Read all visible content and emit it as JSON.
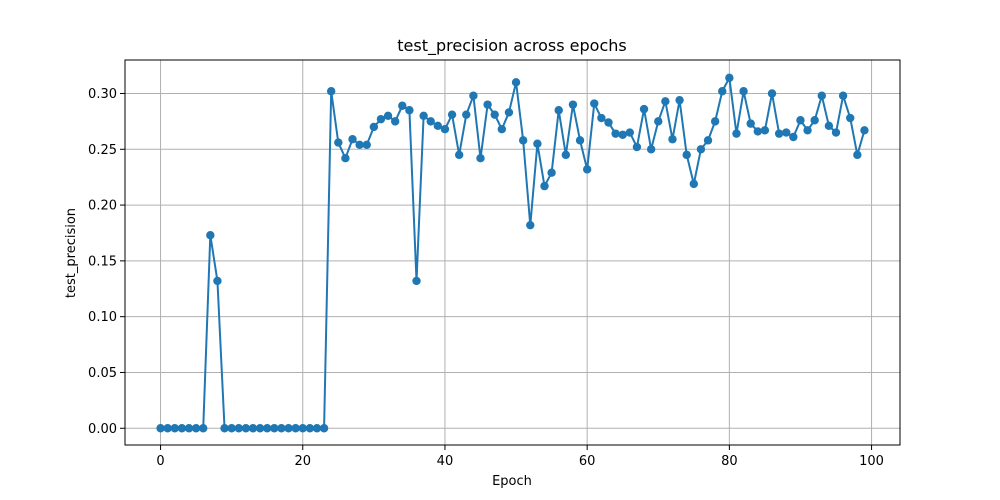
{
  "chart_data": {
    "type": "line",
    "title": "test_precision across epochs",
    "xlabel": "Epoch",
    "ylabel": "test_precision",
    "xlim": [
      -5,
      104
    ],
    "ylim": [
      -0.015,
      0.33
    ],
    "xticks": [
      0,
      20,
      40,
      60,
      80,
      100
    ],
    "xtick_labels": [
      "0",
      "20",
      "40",
      "60",
      "80",
      "100"
    ],
    "yticks": [
      0.0,
      0.05,
      0.1,
      0.15,
      0.2,
      0.25,
      0.3
    ],
    "ytick_labels": [
      "0.00",
      "0.05",
      "0.10",
      "0.15",
      "0.20",
      "0.25",
      "0.30"
    ],
    "grid": true,
    "color": "#1f77b4",
    "marker": "circle",
    "x": [
      0,
      1,
      2,
      3,
      4,
      5,
      6,
      7,
      8,
      9,
      10,
      11,
      12,
      13,
      14,
      15,
      16,
      17,
      18,
      19,
      20,
      21,
      22,
      23,
      24,
      25,
      26,
      27,
      28,
      29,
      30,
      31,
      32,
      33,
      34,
      35,
      36,
      37,
      38,
      39,
      40,
      41,
      42,
      43,
      44,
      45,
      46,
      47,
      48,
      49,
      50,
      51,
      52,
      53,
      54,
      55,
      56,
      57,
      58,
      59,
      60,
      61,
      62,
      63,
      64,
      65,
      66,
      67,
      68,
      69,
      70,
      71,
      72,
      73,
      74,
      75,
      76,
      77,
      78,
      79,
      80,
      81,
      82,
      83,
      84,
      85,
      86,
      87,
      88,
      89,
      90,
      91,
      92,
      93,
      94,
      95,
      96,
      97,
      98,
      99
    ],
    "y": [
      0,
      0,
      0,
      0,
      0,
      0,
      0,
      0.173,
      0.132,
      0,
      0,
      0,
      0,
      0,
      0,
      0,
      0,
      0,
      0,
      0,
      0,
      0,
      0,
      0,
      0.302,
      0.256,
      0.242,
      0.259,
      0.254,
      0.254,
      0.27,
      0.277,
      0.28,
      0.275,
      0.289,
      0.285,
      0.132,
      0.28,
      0.275,
      0.271,
      0.268,
      0.281,
      0.245,
      0.281,
      0.298,
      0.242,
      0.29,
      0.281,
      0.268,
      0.283,
      0.31,
      0.258,
      0.182,
      0.255,
      0.217,
      0.229,
      0.285,
      0.245,
      0.29,
      0.258,
      0.232,
      0.291,
      0.278,
      0.274,
      0.264,
      0.263,
      0.265,
      0.252,
      0.286,
      0.25,
      0.275,
      0.293,
      0.259,
      0.294,
      0.245,
      0.219,
      0.25,
      0.258,
      0.275,
      0.302,
      0.314,
      0.264,
      0.302,
      0.273,
      0.266,
      0.267,
      0.3,
      0.264,
      0.265,
      0.261,
      0.276,
      0.267,
      0.276,
      0.298,
      0.271,
      0.265,
      0.298,
      0.278,
      0.245,
      0.267
    ]
  }
}
